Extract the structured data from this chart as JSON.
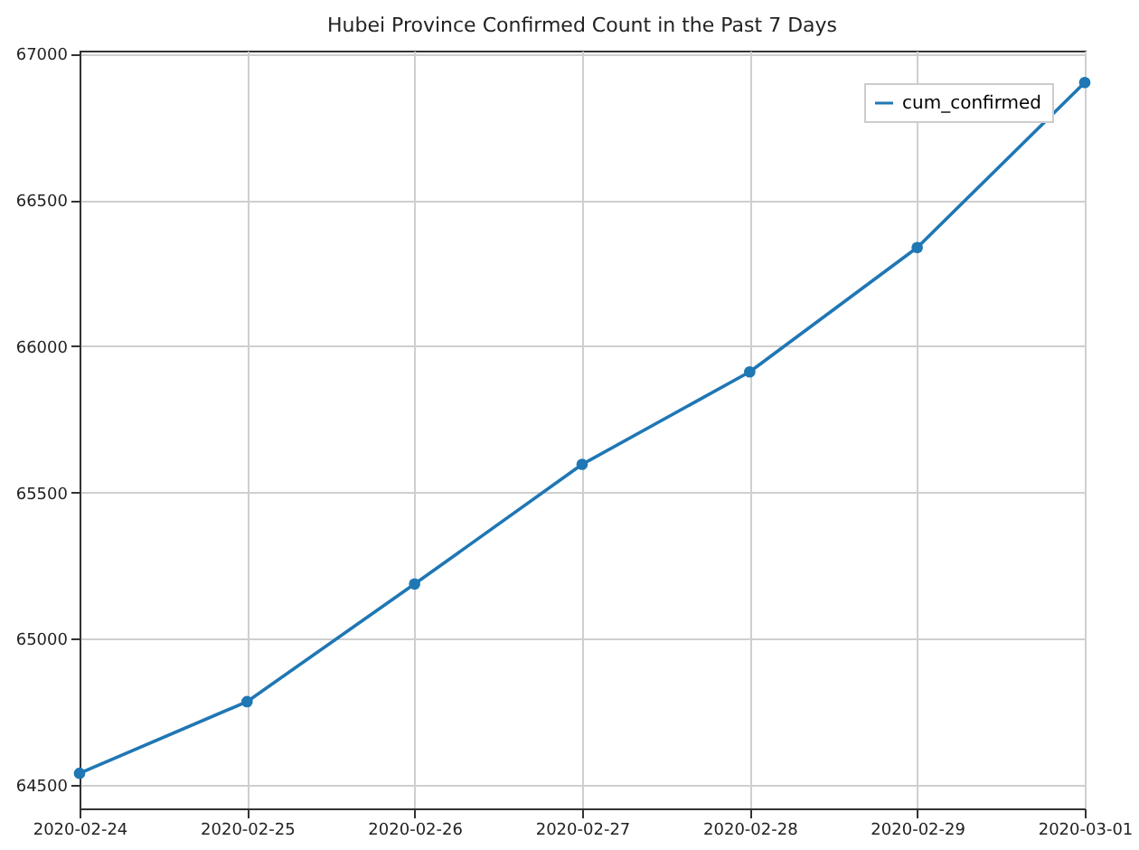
{
  "chart_data": {
    "type": "line",
    "title": "Hubei Province Confirmed Count in the Past 7 Days",
    "x": [
      "2020-02-24",
      "2020-02-25",
      "2020-02-26",
      "2020-02-27",
      "2020-02-28",
      "2020-02-29",
      "2020-03-01"
    ],
    "series": [
      {
        "name": "cum_confirmed",
        "color": "#1f77b4",
        "values": [
          64540,
          64785,
          65187,
          65596,
          65912,
          66337,
          66901
        ]
      }
    ],
    "xlim": [
      "2020-02-24",
      "2020-03-01"
    ],
    "xticks": [
      "2020-02-24",
      "2020-02-25",
      "2020-02-26",
      "2020-02-27",
      "2020-02-28",
      "2020-02-29",
      "2020-03-01"
    ],
    "ylim": [
      64420,
      67010
    ],
    "yticks": [
      64500,
      65000,
      65500,
      66000,
      66500,
      67000
    ],
    "grid": true,
    "legend": "top right",
    "marker": "circle",
    "line_style": "solid"
  }
}
